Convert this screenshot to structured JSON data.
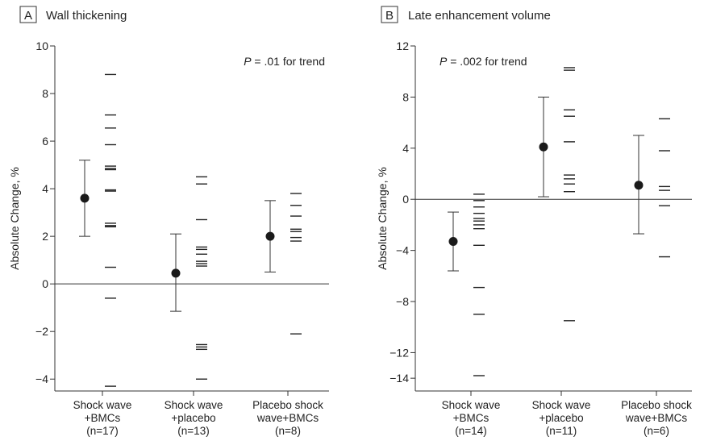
{
  "chart_data": [
    {
      "type": "scatter",
      "panel_letter": "A",
      "title": "Wall thickening",
      "ylabel": "Absolute Change, %",
      "annotation_p": "P",
      "annotation_rest": " = .01 for trend",
      "ylim": [
        -4.5,
        10
      ],
      "yticks": [
        -4,
        -2,
        0,
        2,
        4,
        6,
        8,
        10
      ],
      "ytick_labels": [
        "−4",
        "−2",
        "0",
        "2",
        "4",
        "6",
        "8",
        "10"
      ],
      "categories": [
        {
          "lines": [
            "Shock wave",
            "+BMCs",
            "(n=17)"
          ],
          "mean": 3.6,
          "ci": [
            2.0,
            5.2
          ],
          "points": [
            8.8,
            7.1,
            6.55,
            5.85,
            4.95,
            4.85,
            4.8,
            3.95,
            3.9,
            2.55,
            2.45,
            2.4,
            0.7,
            -0.6,
            -4.3
          ]
        },
        {
          "lines": [
            "Shock wave",
            "+placebo",
            "(n=13)"
          ],
          "mean": 0.45,
          "ci": [
            -1.15,
            2.1
          ],
          "points": [
            4.5,
            4.2,
            2.7,
            1.55,
            1.45,
            1.25,
            0.95,
            0.85,
            0.75,
            -2.55,
            -2.65,
            -2.75,
            -4.0
          ]
        },
        {
          "lines": [
            "Placebo shock",
            "wave+BMCs",
            "(n=8)"
          ],
          "mean": 2.0,
          "ci": [
            0.5,
            3.5
          ],
          "points": [
            3.8,
            3.3,
            2.85,
            2.3,
            2.2,
            1.95,
            1.8,
            -2.1
          ]
        }
      ]
    },
    {
      "type": "scatter",
      "panel_letter": "B",
      "title": "Late enhancement volume",
      "ylabel": "Absolute Change, %",
      "annotation_p": "P",
      "annotation_rest": " = .002 for trend",
      "ylim": [
        -15,
        12
      ],
      "yticks": [
        -14,
        -12,
        -8,
        -4,
        0,
        4,
        8,
        12
      ],
      "ytick_labels": [
        "−14",
        "−12",
        "−8",
        "−4",
        "0",
        "4",
        "8",
        "12"
      ],
      "categories": [
        {
          "lines": [
            "Shock wave",
            "+BMCs",
            "(n=14)"
          ],
          "mean": -3.3,
          "ci": [
            -5.6,
            -1.0
          ],
          "points": [
            0.4,
            -0.1,
            -0.6,
            -1.1,
            -1.5,
            -1.7,
            -2.0,
            -2.3,
            -3.6,
            -6.9,
            -9.0,
            -13.8
          ]
        },
        {
          "lines": [
            "Shock wave",
            "+placebo",
            "(n=11)"
          ],
          "mean": 4.1,
          "ci": [
            0.2,
            8.0
          ],
          "points": [
            10.3,
            10.1,
            7.0,
            6.5,
            4.5,
            1.9,
            1.6,
            1.2,
            0.6,
            -9.5
          ]
        },
        {
          "lines": [
            "Placebo shock",
            "wave+BMCs",
            "(n=6)"
          ],
          "mean": 1.1,
          "ci": [
            -2.7,
            5.0
          ],
          "points": [
            6.3,
            3.8,
            1.0,
            0.7,
            -0.5,
            -4.5
          ]
        }
      ]
    }
  ]
}
